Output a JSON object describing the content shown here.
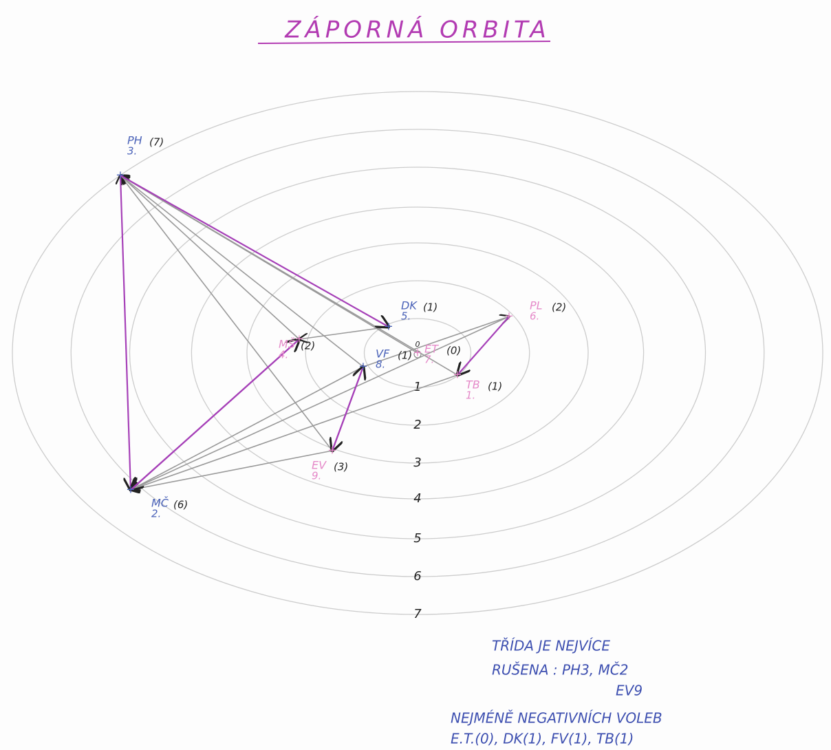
{
  "title": "ZÁPORNÁ ORBITA",
  "rings": [
    "0",
    "1",
    "2",
    "3",
    "4",
    "5",
    "6",
    "7"
  ],
  "nodes": [
    {
      "name": "PH",
      "number": "3.",
      "count": "(7)"
    },
    {
      "name": "MČ",
      "number": "2.",
      "count": "(6)"
    },
    {
      "name": "DK",
      "number": "5.",
      "count": "(1)"
    },
    {
      "name": "PL",
      "number": "6.",
      "count": "(2)"
    },
    {
      "name": "VF",
      "number": "8.",
      "count": "(1)"
    },
    {
      "name": "ET",
      "number": "7.",
      "count": "(0)"
    },
    {
      "name": "TB",
      "number": "1.",
      "count": "(1)"
    },
    {
      "name": "EV",
      "number": "9.",
      "count": "(3)"
    },
    {
      "name": "MŠ",
      "number": "4.",
      "count": "(2)"
    }
  ],
  "note": {
    "lines": [
      "TŘÍDA JE NEJVÍCE",
      "RUŠENA : PH3, MČ2",
      "EV9",
      "NEJMÉNĚ NEGATIVNÍCH VOLEB",
      "E.T.(0), DK(1), FV(1), TB(1)"
    ]
  }
}
